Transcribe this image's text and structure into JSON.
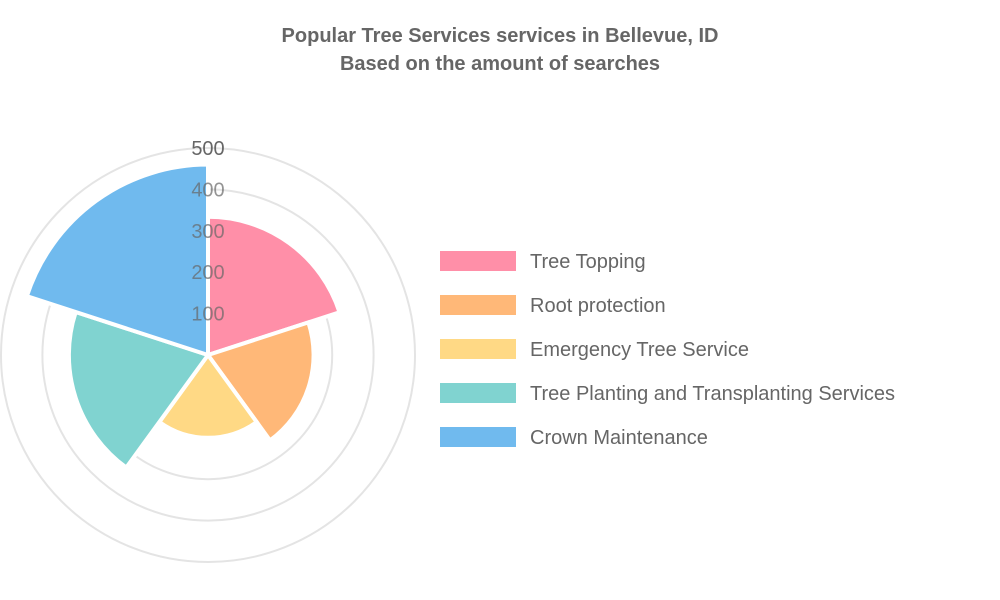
{
  "chart_data": {
    "type": "polarArea",
    "title": [
      "Popular Tree Services services in Bellevue, ID",
      "Based on the amount of searches"
    ],
    "categories": [
      "Tree Topping",
      "Root protection",
      "Emergency Tree Service",
      "Tree Planting and Transplanting Services",
      "Crown Maintenance"
    ],
    "values": [
      334,
      255,
      200,
      336,
      460
    ],
    "colors": [
      "#ff8fa8",
      "#ffb878",
      "#ffd985",
      "#80d3d0",
      "#70baee"
    ],
    "r_ticks": [
      100,
      200,
      300,
      400,
      500
    ],
    "r_range": [
      0,
      500
    ],
    "grid": true,
    "legend_position": "right"
  }
}
